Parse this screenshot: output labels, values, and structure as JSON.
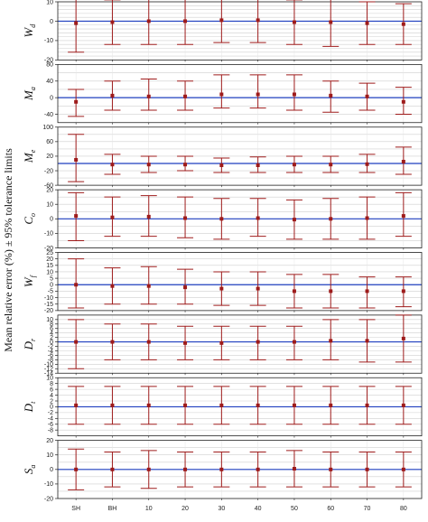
{
  "chart_data": {
    "type": "errorbar",
    "title": "",
    "ylabel": "Mean relative error (%) ± 95% tolerance limits",
    "categories": [
      "SH",
      "BH",
      "10",
      "20",
      "30",
      "40",
      "50",
      "60",
      "70",
      "80"
    ],
    "colors": {
      "marker": "#9e1b1b",
      "errorbar": "#9e1b1b",
      "reference": "#1f3fbf",
      "grid": "#cfcfcf"
    },
    "panels": [
      {
        "label_main": "W",
        "label_sub": "d",
        "ylim": [
          -20,
          10
        ],
        "yticks": [
          -20,
          -10,
          0,
          10
        ],
        "points": [
          {
            "mean": -1,
            "low": -16,
            "high": 14
          },
          {
            "mean": -0.5,
            "low": -12,
            "high": 11
          },
          {
            "mean": 0,
            "low": -12,
            "high": 12
          },
          {
            "mean": 0,
            "low": -12,
            "high": 12
          },
          {
            "mean": 0.5,
            "low": -11,
            "high": 12
          },
          {
            "mean": 0.5,
            "low": -11,
            "high": 12
          },
          {
            "mean": -0.5,
            "low": -12,
            "high": 11
          },
          {
            "mean": -0.5,
            "low": -13,
            "high": 12
          },
          {
            "mean": -1,
            "low": -12,
            "high": 10
          },
          {
            "mean": -1.5,
            "low": -12,
            "high": 9
          }
        ]
      },
      {
        "label_main": "M",
        "label_sub": "a",
        "ylim": [
          -60,
          80
        ],
        "yticks": [
          -40,
          0,
          40,
          80
        ],
        "points": [
          {
            "mean": -10,
            "low": -45,
            "high": 20
          },
          {
            "mean": 5,
            "low": -30,
            "high": 40
          },
          {
            "mean": 3,
            "low": -30,
            "high": 45
          },
          {
            "mean": 3,
            "low": -30,
            "high": 40
          },
          {
            "mean": 8,
            "low": -25,
            "high": 55
          },
          {
            "mean": 8,
            "low": -25,
            "high": 55
          },
          {
            "mean": 8,
            "low": -30,
            "high": 55
          },
          {
            "mean": 5,
            "low": -35,
            "high": 40
          },
          {
            "mean": 3,
            "low": -30,
            "high": 35
          },
          {
            "mean": -10,
            "low": -40,
            "high": 25
          }
        ]
      },
      {
        "label_main": "M",
        "label_sub": "e",
        "ylim": [
          -60,
          100
        ],
        "yticks": [
          -60,
          -20,
          20,
          60,
          100
        ],
        "points": [
          {
            "mean": 10,
            "low": -50,
            "high": 80
          },
          {
            "mean": -3,
            "low": -30,
            "high": 25
          },
          {
            "mean": -3,
            "low": -25,
            "high": 20
          },
          {
            "mean": -3,
            "low": -20,
            "high": 20
          },
          {
            "mean": -5,
            "low": -25,
            "high": 15
          },
          {
            "mean": -5,
            "low": -25,
            "high": 18
          },
          {
            "mean": -3,
            "low": -25,
            "high": 20
          },
          {
            "mean": -3,
            "low": -25,
            "high": 20
          },
          {
            "mean": -2,
            "low": -25,
            "high": 25
          },
          {
            "mean": 5,
            "low": -30,
            "high": 45
          }
        ]
      },
      {
        "label_main": "C",
        "label_sub": "o",
        "ylim": [
          -20,
          20
        ],
        "yticks": [
          -20,
          -10,
          0,
          10,
          20
        ],
        "points": [
          {
            "mean": 2,
            "low": -15,
            "high": 18
          },
          {
            "mean": 1,
            "low": -12,
            "high": 15
          },
          {
            "mean": 1.5,
            "low": -12,
            "high": 16
          },
          {
            "mean": 0.5,
            "low": -13,
            "high": 15
          },
          {
            "mean": 0,
            "low": -14,
            "high": 14
          },
          {
            "mean": 0.5,
            "low": -12,
            "high": 14
          },
          {
            "mean": -0.5,
            "low": -14,
            "high": 13
          },
          {
            "mean": 0,
            "low": -14,
            "high": 14
          },
          {
            "mean": 0.5,
            "low": -14,
            "high": 15
          },
          {
            "mean": 2,
            "low": -12,
            "high": 18
          }
        ]
      },
      {
        "label_main": "W",
        "label_sub": "f",
        "ylim": [
          -20,
          25
        ],
        "yticks": [
          -20,
          -15,
          -10,
          -5,
          0,
          5,
          10,
          15,
          20,
          25
        ],
        "points": [
          {
            "mean": 0,
            "low": -18,
            "high": 20
          },
          {
            "mean": -1,
            "low": -15,
            "high": 13
          },
          {
            "mean": -1,
            "low": -15,
            "high": 14
          },
          {
            "mean": -2,
            "low": -15,
            "high": 12
          },
          {
            "mean": -3,
            "low": -16,
            "high": 10
          },
          {
            "mean": -3,
            "low": -16,
            "high": 10
          },
          {
            "mean": -5,
            "low": -18,
            "high": 8
          },
          {
            "mean": -5,
            "low": -18,
            "high": 8
          },
          {
            "mean": -5,
            "low": -18,
            "high": 6
          },
          {
            "mean": -5,
            "low": -17,
            "high": 6
          }
        ]
      },
      {
        "label_main": "D",
        "label_sub": "r",
        "ylim": [
          -14,
          12
        ],
        "yticks": [
          -14,
          -12,
          -10,
          -8,
          -6,
          -4,
          -2,
          0,
          2,
          4,
          6,
          8,
          10
        ],
        "points": [
          {
            "mean": 0,
            "low": -12,
            "high": 10
          },
          {
            "mean": 0,
            "low": -8,
            "high": 8
          },
          {
            "mean": 0,
            "low": -8,
            "high": 8
          },
          {
            "mean": -0.5,
            "low": -8,
            "high": 7
          },
          {
            "mean": -0.5,
            "low": -8,
            "high": 7
          },
          {
            "mean": 0,
            "low": -8,
            "high": 7
          },
          {
            "mean": 0,
            "low": -8,
            "high": 7
          },
          {
            "mean": 0.5,
            "low": -8,
            "high": 10
          },
          {
            "mean": 0.5,
            "low": -9,
            "high": 10
          },
          {
            "mean": 1.5,
            "low": -9,
            "high": 12
          }
        ]
      },
      {
        "label_main": "D",
        "label_sub": "t",
        "ylim": [
          -10,
          10
        ],
        "yticks": [
          -8,
          -6,
          -4,
          -2,
          0,
          2,
          4,
          6,
          8,
          10
        ],
        "points": [
          {
            "mean": 0.5,
            "low": -6,
            "high": 7
          },
          {
            "mean": 0.5,
            "low": -6,
            "high": 7
          },
          {
            "mean": 0.5,
            "low": -6,
            "high": 7
          },
          {
            "mean": 0.5,
            "low": -6,
            "high": 7
          },
          {
            "mean": 0.5,
            "low": -6,
            "high": 7
          },
          {
            "mean": 0.5,
            "low": -6,
            "high": 7
          },
          {
            "mean": 0.5,
            "low": -6,
            "high": 7
          },
          {
            "mean": 0.5,
            "low": -6,
            "high": 7
          },
          {
            "mean": 0.5,
            "low": -6,
            "high": 7
          },
          {
            "mean": 0.5,
            "low": -6,
            "high": 7
          }
        ]
      },
      {
        "label_main": "S",
        "label_sub": "a",
        "ylim": [
          -20,
          20
        ],
        "yticks": [
          -20,
          -10,
          0,
          10,
          20
        ],
        "points": [
          {
            "mean": 0,
            "low": -14,
            "high": 14
          },
          {
            "mean": 0,
            "low": -12,
            "high": 12
          },
          {
            "mean": 0,
            "low": -13,
            "high": 13
          },
          {
            "mean": 0,
            "low": -12,
            "high": 12
          },
          {
            "mean": 0,
            "low": -12,
            "high": 12
          },
          {
            "mean": 0,
            "low": -12,
            "high": 12
          },
          {
            "mean": 0.5,
            "low": -12,
            "high": 13
          },
          {
            "mean": 0,
            "low": -12,
            "high": 12
          },
          {
            "mean": 0,
            "low": -12,
            "high": 12
          },
          {
            "mean": 0,
            "low": -12,
            "high": 12
          }
        ]
      }
    ]
  }
}
